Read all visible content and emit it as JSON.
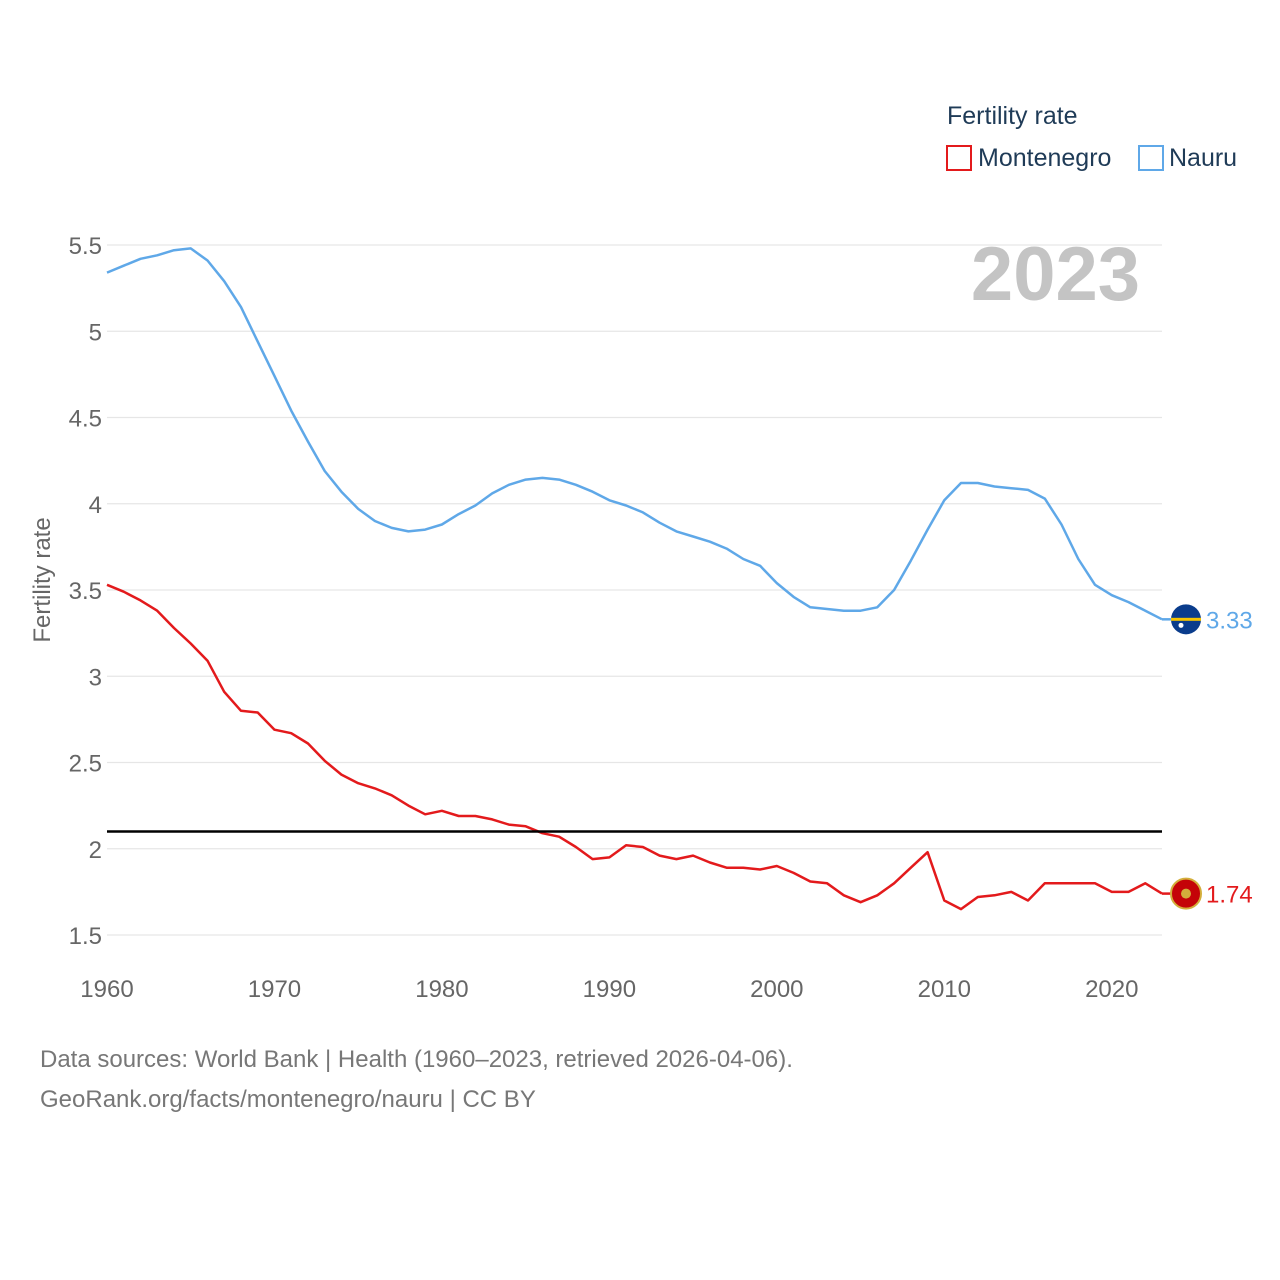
{
  "chart_data": {
    "type": "line",
    "title": "",
    "legend_title": "Fertility rate",
    "ylabel": "Fertility rate",
    "xlabel": "",
    "xlim": [
      1960,
      2023
    ],
    "ylim": [
      1.4,
      5.6
    ],
    "x_ticks": [
      1960,
      1970,
      1980,
      1990,
      2000,
      2010,
      2020
    ],
    "y_ticks": [
      1.5,
      2,
      2.5,
      3,
      3.5,
      4,
      4.5,
      5,
      5.5
    ],
    "y_tick_labels": [
      "1.5",
      "2",
      "2.5",
      "3",
      "3.5",
      "4",
      "4.5",
      "5",
      "5.5"
    ],
    "x_tick_labels": [
      "1960",
      "1970",
      "1980",
      "1990",
      "2000",
      "2010",
      "2020"
    ],
    "year_label": "2023",
    "reference_line": {
      "value": 2.1,
      "color": "#000000"
    },
    "grid": true,
    "legend_position": "top-right",
    "series": [
      {
        "name": "Montenegro",
        "color": "#e31a1c",
        "end_label": "1.74",
        "x": [
          1960,
          1961,
          1962,
          1963,
          1964,
          1965,
          1966,
          1967,
          1968,
          1969,
          1970,
          1971,
          1972,
          1973,
          1974,
          1975,
          1976,
          1977,
          1978,
          1979,
          1980,
          1981,
          1982,
          1983,
          1984,
          1985,
          1986,
          1987,
          1988,
          1989,
          1990,
          1991,
          1992,
          1993,
          1994,
          1995,
          1996,
          1997,
          1998,
          1999,
          2000,
          2001,
          2002,
          2003,
          2004,
          2005,
          2006,
          2007,
          2008,
          2009,
          2010,
          2011,
          2012,
          2013,
          2014,
          2015,
          2016,
          2017,
          2018,
          2019,
          2020,
          2021,
          2022,
          2023
        ],
        "values": [
          3.53,
          3.49,
          3.44,
          3.38,
          3.28,
          3.19,
          3.09,
          2.91,
          2.8,
          2.79,
          2.69,
          2.67,
          2.61,
          2.51,
          2.43,
          2.38,
          2.35,
          2.31,
          2.25,
          2.2,
          2.22,
          2.19,
          2.19,
          2.17,
          2.14,
          2.13,
          2.09,
          2.07,
          2.01,
          1.94,
          1.95,
          2.02,
          2.01,
          1.96,
          1.94,
          1.96,
          1.92,
          1.89,
          1.89,
          1.88,
          1.9,
          1.86,
          1.81,
          1.8,
          1.73,
          1.69,
          1.73,
          1.8,
          1.89,
          1.98,
          1.7,
          1.65,
          1.72,
          1.73,
          1.75,
          1.7,
          1.8,
          1.8,
          1.8,
          1.8,
          1.75,
          1.75,
          1.8,
          1.74
        ]
      },
      {
        "name": "Nauru",
        "color": "#5fa8e8",
        "end_label": "3.33",
        "x": [
          1960,
          1961,
          1962,
          1963,
          1964,
          1965,
          1966,
          1967,
          1968,
          1969,
          1970,
          1971,
          1972,
          1973,
          1974,
          1975,
          1976,
          1977,
          1978,
          1979,
          1980,
          1981,
          1982,
          1983,
          1984,
          1985,
          1986,
          1987,
          1988,
          1989,
          1990,
          1991,
          1992,
          1993,
          1994,
          1995,
          1996,
          1997,
          1998,
          1999,
          2000,
          2001,
          2002,
          2003,
          2004,
          2005,
          2006,
          2007,
          2008,
          2009,
          2010,
          2011,
          2012,
          2013,
          2014,
          2015,
          2016,
          2017,
          2018,
          2019,
          2020,
          2021,
          2022,
          2023
        ],
        "values": [
          5.34,
          5.38,
          5.42,
          5.44,
          5.47,
          5.48,
          5.41,
          5.29,
          5.14,
          4.94,
          4.74,
          4.54,
          4.36,
          4.19,
          4.07,
          3.97,
          3.9,
          3.86,
          3.84,
          3.85,
          3.88,
          3.94,
          3.99,
          4.06,
          4.11,
          4.14,
          4.15,
          4.14,
          4.11,
          4.07,
          4.02,
          3.99,
          3.95,
          3.89,
          3.84,
          3.81,
          3.78,
          3.74,
          3.68,
          3.64,
          3.54,
          3.46,
          3.4,
          3.39,
          3.38,
          3.38,
          3.4,
          3.5,
          3.67,
          3.85,
          4.02,
          4.12,
          4.12,
          4.1,
          4.09,
          4.08,
          4.03,
          3.88,
          3.68,
          3.53,
          3.47,
          3.43,
          3.38,
          3.33
        ]
      }
    ]
  },
  "source": {
    "line1": "Data sources: World Bank | Health (1960–2023, retrieved 2026-04-06).",
    "line2": "GeoRank.org/facts/montenegro/nauru | CC BY"
  },
  "colors": {
    "grid": "#e6e6e6",
    "montenegro": "#e31a1c",
    "nauru": "#5fa8e8"
  }
}
